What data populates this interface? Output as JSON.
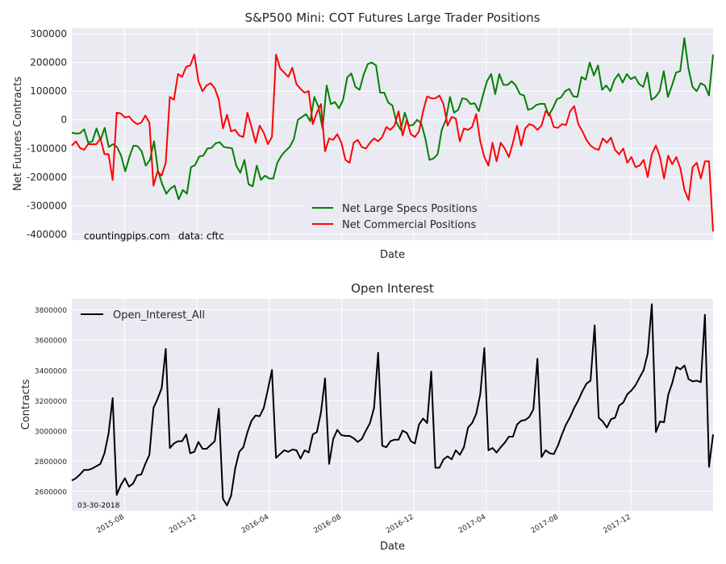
{
  "chart_data": [
    {
      "type": "line",
      "title": "S&P500 Mini: COT Futures Large Trader Positions",
      "xlabel": "Date",
      "ylabel": "Net Futures Contracts",
      "ylim": [
        -420000,
        320000
      ],
      "yticks": [
        300000,
        200000,
        100000,
        0,
        -100000,
        -200000,
        -300000,
        -400000
      ],
      "ytick_labels": [
        "300000",
        "200000",
        "100000",
        "0",
        "-100000",
        "-200000",
        "-300000",
        "-400000"
      ],
      "grid": true,
      "legend_position": "lower-center",
      "annotations": [
        {
          "text": "countingpips.com",
          "position": "bottom-left"
        },
        {
          "text": "data: cftc",
          "position": "bottom-left"
        }
      ],
      "series": [
        {
          "name": "Net Large Specs Positions",
          "color": "#008000",
          "values": [
            -45000,
            -48000,
            -47000,
            -33000,
            -80000,
            -75000,
            -30000,
            -70000,
            -28000,
            -95000,
            -85000,
            -95000,
            -125000,
            -180000,
            -130000,
            -90000,
            -92000,
            -110000,
            -160000,
            -140000,
            -75000,
            -180000,
            -225000,
            -258000,
            -240000,
            -230000,
            -278000,
            -245000,
            -258000,
            -165000,
            -158000,
            -128000,
            -125000,
            -100000,
            -98000,
            -82000,
            -78000,
            -95000,
            -97000,
            -100000,
            -160000,
            -185000,
            -140000,
            -225000,
            -232000,
            -160000,
            -210000,
            -195000,
            -205000,
            -205000,
            -150000,
            -125000,
            -108000,
            -95000,
            -68000,
            0,
            10000,
            20000,
            -5000,
            80000,
            45000,
            -30000,
            120000,
            55000,
            62000,
            40000,
            70000,
            148000,
            162000,
            115000,
            105000,
            158000,
            195000,
            200000,
            190000,
            95000,
            95000,
            60000,
            50000,
            -10000,
            -35000,
            25000,
            -20000,
            -18000,
            0,
            -12000,
            -65000,
            -140000,
            -135000,
            -120000,
            -35000,
            0,
            80000,
            25000,
            35000,
            75000,
            72000,
            55000,
            58000,
            30000,
            85000,
            135000,
            160000,
            90000,
            160000,
            122000,
            122000,
            135000,
            120000,
            90000,
            85000,
            35000,
            40000,
            52000,
            56000,
            56000,
            15000,
            40000,
            72000,
            78000,
            100000,
            108000,
            82000,
            80000,
            150000,
            140000,
            200000,
            155000,
            190000,
            105000,
            120000,
            100000,
            140000,
            160000,
            130000,
            160000,
            142000,
            150000,
            125000,
            115000,
            165000,
            70000,
            80000,
            100000,
            170000,
            80000,
            120000,
            165000,
            170000,
            285000,
            180000,
            115000,
            100000,
            128000,
            120000,
            85000,
            228000
          ]
        },
        {
          "name": "Net Commercial Positions",
          "color": "#ff0000",
          "values": [
            -90000,
            -75000,
            -98000,
            -105000,
            -85000,
            -85000,
            -85000,
            -65000,
            -120000,
            -120000,
            -210000,
            25000,
            22000,
            8000,
            12000,
            -5000,
            -15000,
            -10000,
            15000,
            -10000,
            -230000,
            -180000,
            -195000,
            -150000,
            80000,
            70000,
            160000,
            150000,
            185000,
            190000,
            228000,
            135000,
            100000,
            120000,
            128000,
            110000,
            70000,
            -30000,
            18000,
            -40000,
            -35000,
            -55000,
            -60000,
            25000,
            -25000,
            -80000,
            -20000,
            -45000,
            -85000,
            -60000,
            228000,
            180000,
            165000,
            150000,
            182000,
            125000,
            108000,
            95000,
            100000,
            -15000,
            25000,
            55000,
            -110000,
            -65000,
            -70000,
            -50000,
            -80000,
            -140000,
            -150000,
            -80000,
            -70000,
            -95000,
            -100000,
            -80000,
            -65000,
            -75000,
            -60000,
            -25000,
            -35000,
            -20000,
            30000,
            -55000,
            0,
            -50000,
            -60000,
            -40000,
            30000,
            82000,
            75000,
            75000,
            85000,
            55000,
            -20000,
            10000,
            5000,
            -75000,
            -30000,
            -35000,
            -25000,
            20000,
            -75000,
            -130000,
            -160000,
            -80000,
            -145000,
            -80000,
            -100000,
            -130000,
            -80000,
            -20000,
            -90000,
            -30000,
            -15000,
            -20000,
            -35000,
            -20000,
            30000,
            20000,
            -25000,
            -28000,
            -15000,
            -18000,
            30000,
            48000,
            -15000,
            -40000,
            -70000,
            -90000,
            -100000,
            -105000,
            -65000,
            -80000,
            -62000,
            -105000,
            -120000,
            -100000,
            -150000,
            -130000,
            -165000,
            -160000,
            -140000,
            -200000,
            -120000,
            -90000,
            -130000,
            -205000,
            -125000,
            -155000,
            -130000,
            -170000,
            -245000,
            -280000,
            -165000,
            -150000,
            -205000,
            -145000,
            -145000,
            -390000
          ]
        }
      ]
    },
    {
      "type": "line",
      "title": "Open Interest",
      "xlabel": "Date",
      "ylabel": "Contracts",
      "ylim": [
        2470000,
        3870000
      ],
      "yticks": [
        2600000,
        2800000,
        3000000,
        3200000,
        3400000,
        3600000,
        3800000
      ],
      "ytick_labels": [
        "2600000",
        "2800000",
        "3000000",
        "3200000",
        "3400000",
        "3600000",
        "3800000"
      ],
      "x_start": "2015-03",
      "x_end": "2018-03-30",
      "xtick_labels": [
        "2015-08",
        "2015-12",
        "2016-04",
        "2016-08",
        "2016-12",
        "2017-04",
        "2017-08",
        "2017-12"
      ],
      "xtick_fractions": [
        0.0822,
        0.1951,
        0.3079,
        0.4207,
        0.5336,
        0.6464,
        0.7593,
        0.8721
      ],
      "grid": true,
      "legend_position": "upper-left",
      "annotations": [
        {
          "text": "03-30-2018",
          "position": "bottom-left"
        }
      ],
      "series": [
        {
          "name": "Open_Interest_All",
          "color": "#000000",
          "values": [
            2670000,
            2685000,
            2710000,
            2740000,
            2740000,
            2750000,
            2765000,
            2780000,
            2850000,
            2980000,
            3215000,
            2575000,
            2640000,
            2685000,
            2630000,
            2650000,
            2705000,
            2710000,
            2780000,
            2840000,
            3150000,
            3210000,
            3280000,
            3540000,
            2885000,
            2915000,
            2930000,
            2930000,
            2975000,
            2850000,
            2860000,
            2925000,
            2880000,
            2880000,
            2905000,
            2930000,
            3145000,
            2550000,
            2505000,
            2570000,
            2750000,
            2860000,
            2890000,
            2990000,
            3065000,
            3100000,
            3095000,
            3150000,
            3270000,
            3400000,
            2820000,
            2845000,
            2870000,
            2860000,
            2875000,
            2870000,
            2815000,
            2870000,
            2855000,
            2975000,
            2990000,
            3120000,
            3345000,
            2780000,
            2945000,
            3005000,
            2970000,
            2965000,
            2965000,
            2950000,
            2925000,
            2945000,
            3000000,
            3050000,
            3150000,
            3515000,
            2900000,
            2890000,
            2930000,
            2940000,
            2940000,
            3000000,
            2985000,
            2930000,
            2915000,
            3040000,
            3080000,
            3050000,
            3390000,
            2755000,
            2755000,
            2810000,
            2830000,
            2810000,
            2870000,
            2840000,
            2890000,
            3020000,
            3050000,
            3110000,
            3240000,
            3545000,
            2870000,
            2885000,
            2855000,
            2890000,
            2920000,
            2960000,
            2960000,
            3040000,
            3065000,
            3070000,
            3090000,
            3140000,
            3475000,
            2825000,
            2870000,
            2850000,
            2845000,
            2900000,
            2975000,
            3040000,
            3090000,
            3150000,
            3200000,
            3260000,
            3310000,
            3330000,
            3695000,
            3085000,
            3060000,
            3020000,
            3075000,
            3085000,
            3165000,
            3185000,
            3240000,
            3265000,
            3300000,
            3350000,
            3400000,
            3510000,
            3835000,
            2990000,
            3060000,
            3055000,
            3235000,
            3315000,
            3420000,
            3405000,
            3430000,
            3340000,
            3325000,
            3330000,
            3320000,
            3765000,
            2760000,
            2975000
          ]
        }
      ]
    }
  ]
}
